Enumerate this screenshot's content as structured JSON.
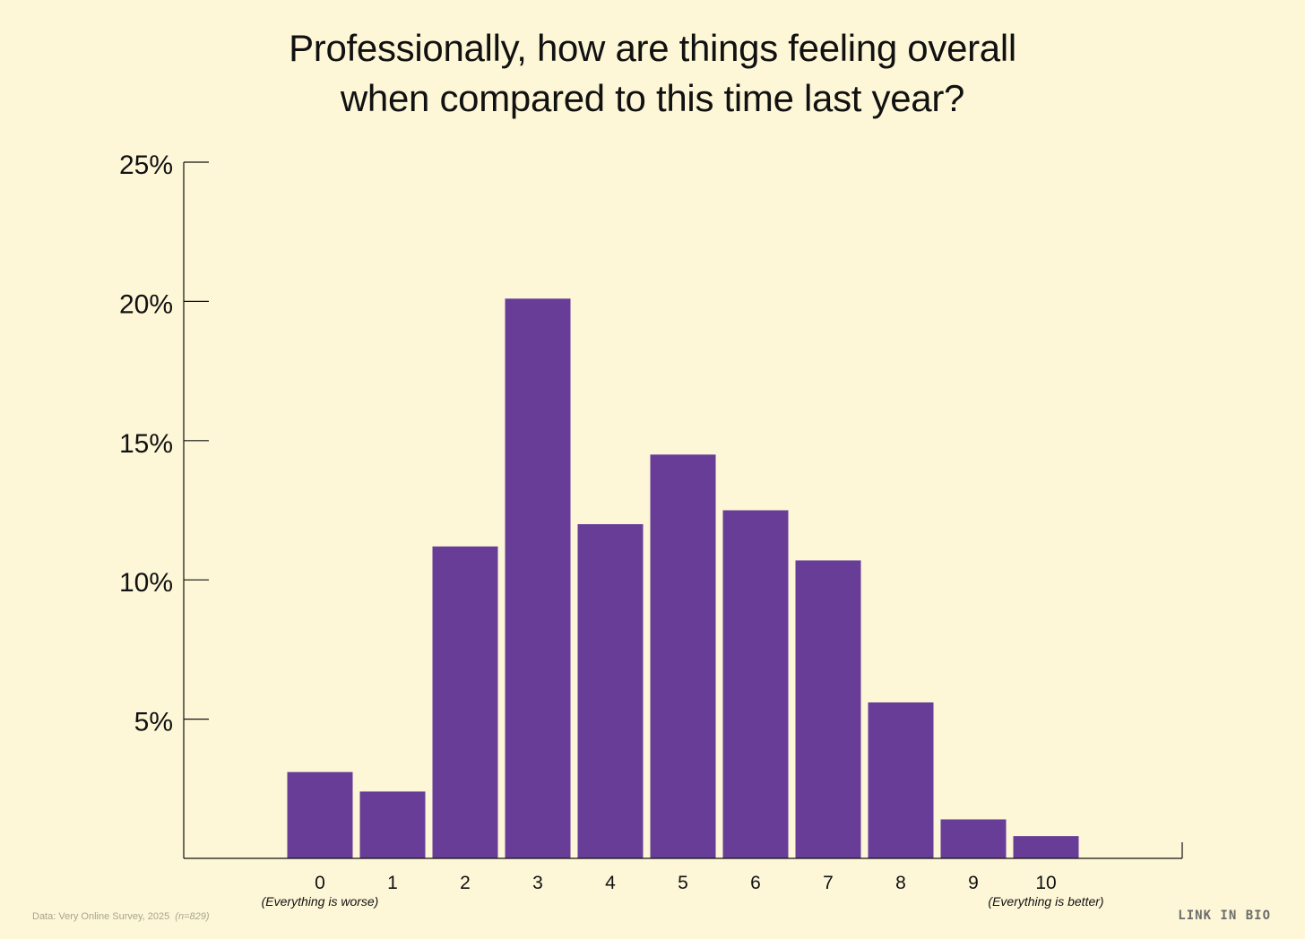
{
  "colors": {
    "background": "#FDF7D7",
    "bar": "#673D98",
    "axis": "#111111"
  },
  "chart_data": {
    "type": "bar",
    "title": "Professionally, how are things feeling overall when compared to this time last year?",
    "title_lines": [
      "Professionally, how are things feeling overall",
      "when compared to this time last year?"
    ],
    "categories": [
      "0",
      "1",
      "2",
      "3",
      "4",
      "5",
      "6",
      "7",
      "8",
      "9",
      "10"
    ],
    "values": [
      3.1,
      2.4,
      11.2,
      20.1,
      12.0,
      14.5,
      12.5,
      10.7,
      5.6,
      1.4,
      0.8
    ],
    "ylim": [
      0,
      25
    ],
    "yticks": [
      5,
      10,
      15,
      20,
      25
    ],
    "ytick_labels": [
      "5%",
      "10%",
      "15%",
      "20%",
      "25%"
    ],
    "xlabel": "",
    "ylabel": "",
    "annotations": {
      "low_end": "(Everything is worse)",
      "high_end": "(Everything is better)"
    }
  },
  "footer": {
    "source": "Data: Very Online Survey, 2025",
    "sample": "(n=829)",
    "brand": "LINK IN BIO"
  }
}
